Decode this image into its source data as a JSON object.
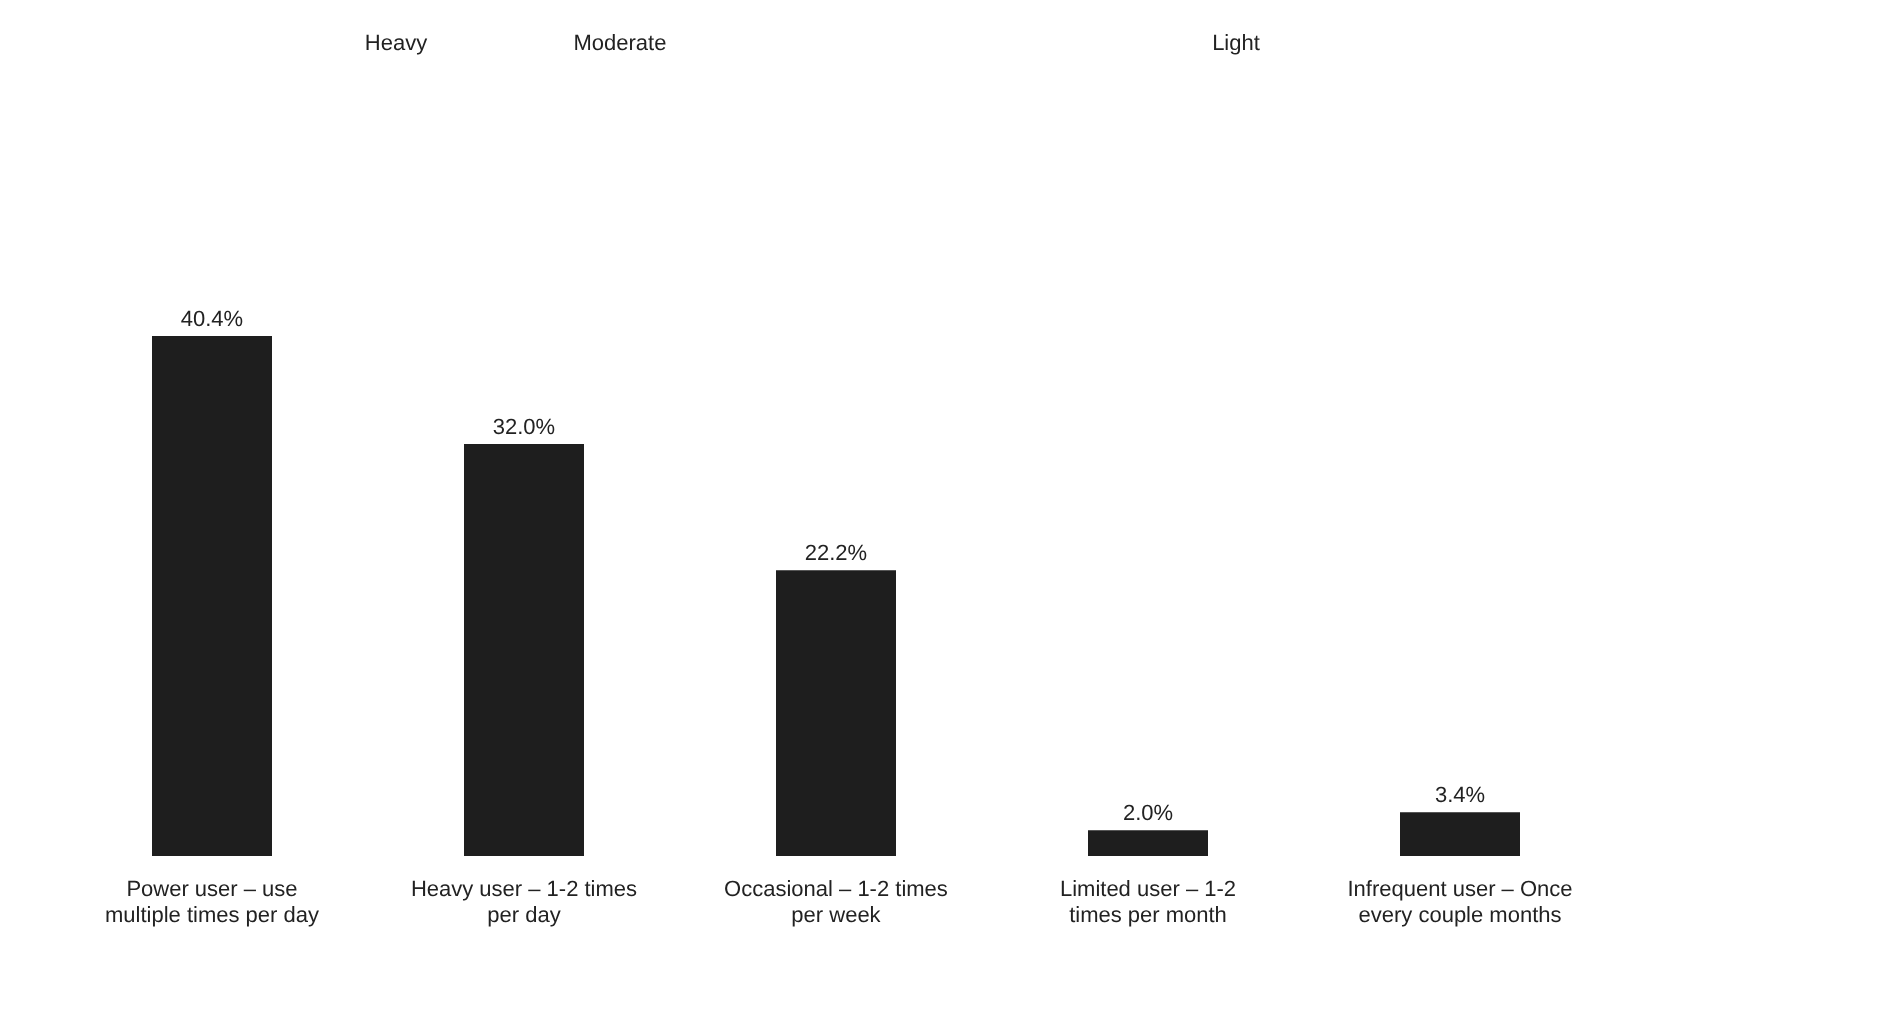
{
  "chart_data": {
    "type": "bar",
    "categories": [
      "Power user – use multiple times per day",
      "Heavy user – 1-2 times per day",
      "Occasional – 1-2 times per week",
      "Limited user – 1-2 times per month",
      "Infrequent user – Once every couple months"
    ],
    "values": [
      40.4,
      32.0,
      22.2,
      2.0,
      3.4
    ],
    "value_labels": [
      "40.4%",
      "32.0%",
      "22.2%",
      "2.0%",
      "3.4%"
    ],
    "color": "#1e1e1e",
    "annotations": [
      "Heavy",
      "Moderate",
      "Light"
    ]
  }
}
